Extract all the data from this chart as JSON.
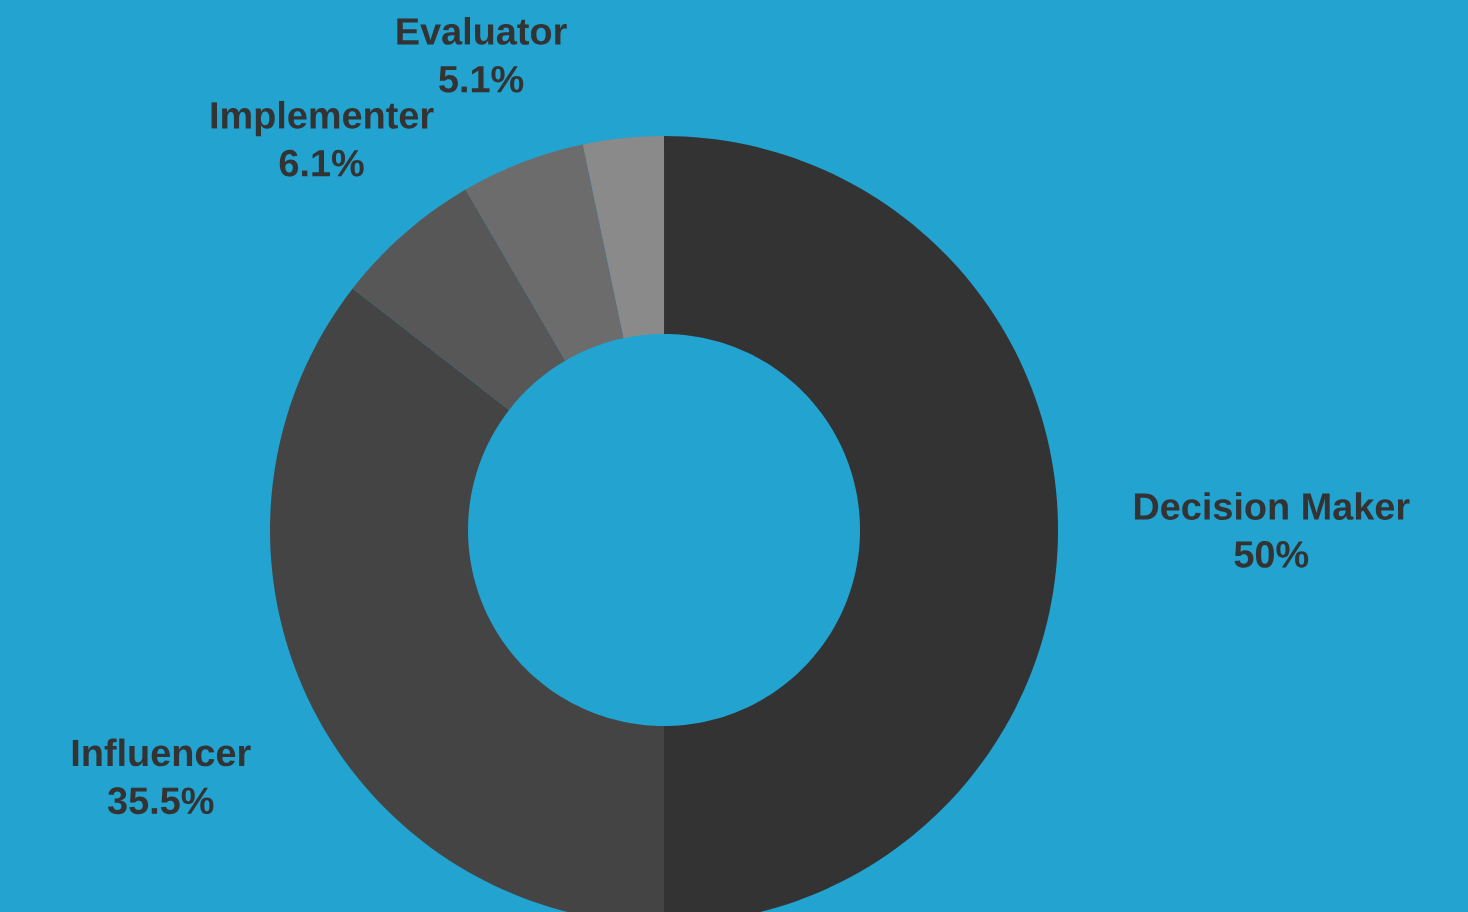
{
  "chart_data": {
    "type": "donut",
    "categories": [
      "Decision Maker",
      "Influencer",
      "Implementer",
      "Evaluator",
      null
    ],
    "values": [
      50,
      35.5,
      6.1,
      5.1,
      3.3
    ],
    "value_labels": [
      "50%",
      "35.5%",
      "6.1%",
      "5.1%",
      null
    ],
    "colors": [
      "#333333",
      "#444444",
      "#575757",
      "#6c6c6c",
      "#8a8a8a"
    ],
    "legend": false
  }
}
